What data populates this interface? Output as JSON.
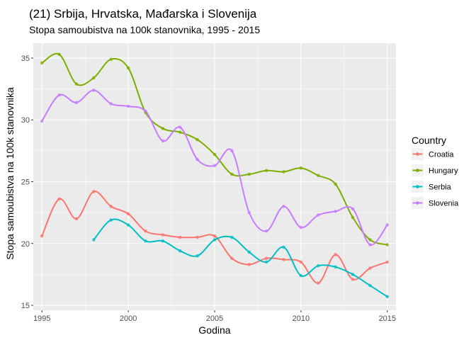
{
  "chart_data": {
    "type": "line",
    "title": "(21) Srbija, Hrvatska, Mađarska i Slovenija",
    "subtitle": "Stopa samoubistva na 100k stanovnika, 1995 - 2015",
    "xlabel": "Godina",
    "ylabel": "Stopa samoubistva na 100k stanovnika",
    "xlim": [
      1994.5,
      2015.5
    ],
    "ylim": [
      14.6,
      36.2
    ],
    "xticks": [
      1995,
      2000,
      2005,
      2010,
      2015
    ],
    "yticks": [
      15,
      20,
      25,
      30,
      35
    ],
    "x_tick_labels": [
      "1995",
      "2000",
      "2005",
      "2010",
      "2015"
    ],
    "y_tick_labels": [
      "15",
      "20",
      "25",
      "30",
      "35"
    ],
    "grid": true,
    "background": "#ebebeb",
    "legend": {
      "title": "Country",
      "position": "right"
    },
    "series": [
      {
        "name": "Croatia",
        "color": "#f8766d",
        "x": [
          1995,
          1996,
          1997,
          1998,
          1999,
          2000,
          2001,
          2002,
          2003,
          2004,
          2005,
          2006,
          2007,
          2008,
          2009,
          2010,
          2011,
          2012,
          2013,
          2014,
          2015
        ],
        "y": [
          20.6,
          23.6,
          22.0,
          24.2,
          23.0,
          22.4,
          21.0,
          20.7,
          20.5,
          20.5,
          20.6,
          18.8,
          18.3,
          18.8,
          18.7,
          18.5,
          16.8,
          19.1,
          17.1,
          18.0,
          18.5
        ]
      },
      {
        "name": "Hungary",
        "color": "#7cae00",
        "x": [
          1995,
          1996,
          1997,
          1998,
          1999,
          2000,
          2001,
          2002,
          2003,
          2004,
          2005,
          2006,
          2007,
          2008,
          2009,
          2010,
          2011,
          2012,
          2013,
          2014,
          2015
        ],
        "y": [
          34.6,
          35.3,
          32.9,
          33.4,
          34.9,
          34.2,
          30.6,
          29.3,
          29.0,
          28.4,
          27.2,
          25.6,
          25.6,
          25.9,
          25.8,
          26.1,
          25.5,
          24.8,
          22.1,
          20.3,
          19.9
        ]
      },
      {
        "name": "Serbia",
        "color": "#00bfc4",
        "x": [
          1998,
          1999,
          2000,
          2001,
          2002,
          2003,
          2004,
          2005,
          2006,
          2007,
          2008,
          2009,
          2010,
          2011,
          2012,
          2013,
          2014,
          2015
        ],
        "y": [
          20.3,
          21.9,
          21.5,
          20.2,
          20.2,
          19.4,
          19.0,
          20.3,
          20.5,
          19.3,
          18.5,
          19.7,
          17.4,
          18.2,
          18.1,
          17.5,
          16.6,
          15.7
        ]
      },
      {
        "name": "Slovenia",
        "color": "#c77cff",
        "x": [
          1995,
          1996,
          1997,
          1998,
          1999,
          2000,
          2001,
          2002,
          2003,
          2004,
          2005,
          2006,
          2007,
          2008,
          2009,
          2010,
          2011,
          2012,
          2013,
          2014,
          2015
        ],
        "y": [
          29.9,
          32.0,
          31.4,
          32.4,
          31.3,
          31.1,
          30.7,
          28.3,
          29.4,
          26.8,
          26.3,
          27.5,
          22.5,
          21.0,
          23.0,
          21.3,
          22.3,
          22.6,
          22.8,
          19.9,
          21.5
        ]
      }
    ]
  }
}
